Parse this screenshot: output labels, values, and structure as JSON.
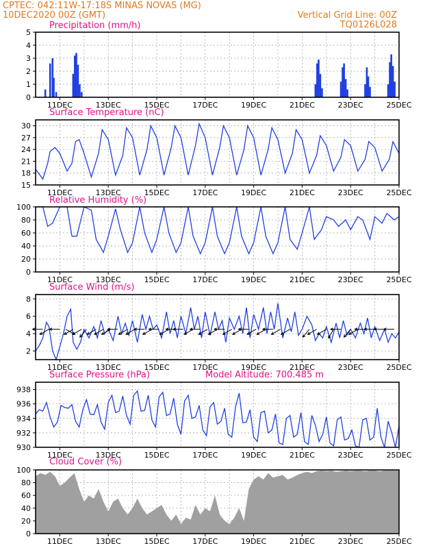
{
  "header": {
    "left_line1": "CPTEC:   042:11W-17:18S   MINAS NOVAS (MG)",
    "left_line2": "10DEC2020 00Z (GMT)",
    "right_line1": "Vertical Grid Line: 00Z",
    "right_line2": "TQ0126L028"
  },
  "colors": {
    "line": "#1f3fe0",
    "cloud": "#a0a0a0",
    "title": "#e0118a",
    "header": "#e07a1f"
  },
  "x_tick_labels": [
    "11DEC",
    "13DEC",
    "15DEC",
    "17DEC",
    "19DEC",
    "21DEC",
    "23DEC",
    "25DEC"
  ],
  "chart_data": [
    {
      "type": "bar",
      "title": "Precipitation (mm/h)",
      "ylim": [
        0,
        5
      ],
      "yticks": [
        "0",
        "1",
        "2",
        "3",
        "4",
        "5"
      ],
      "x_range_days": [
        10,
        25
      ],
      "grid": true,
      "events": [
        {
          "t": 10.4,
          "v": 0.6
        },
        {
          "t": 10.6,
          "v": 2.6
        },
        {
          "t": 10.7,
          "v": 3.0
        },
        {
          "t": 10.75,
          "v": 1.5
        },
        {
          "t": 10.85,
          "v": 0.4
        },
        {
          "t": 11.55,
          "v": 1.8
        },
        {
          "t": 11.62,
          "v": 3.2
        },
        {
          "t": 11.68,
          "v": 3.4
        },
        {
          "t": 11.75,
          "v": 2.5
        },
        {
          "t": 11.82,
          "v": 1.0
        },
        {
          "t": 11.9,
          "v": 0.4
        },
        {
          "t": 21.55,
          "v": 1.0
        },
        {
          "t": 21.62,
          "v": 2.6
        },
        {
          "t": 21.68,
          "v": 2.9
        },
        {
          "t": 21.75,
          "v": 1.8
        },
        {
          "t": 21.82,
          "v": 0.7
        },
        {
          "t": 22.6,
          "v": 1.2
        },
        {
          "t": 22.67,
          "v": 2.3
        },
        {
          "t": 22.73,
          "v": 2.6
        },
        {
          "t": 22.8,
          "v": 1.4
        },
        {
          "t": 22.87,
          "v": 0.6
        },
        {
          "t": 23.6,
          "v": 1.0
        },
        {
          "t": 23.67,
          "v": 2.3
        },
        {
          "t": 23.73,
          "v": 1.6
        },
        {
          "t": 23.8,
          "v": 0.8
        },
        {
          "t": 24.55,
          "v": 1.0
        },
        {
          "t": 24.62,
          "v": 2.7
        },
        {
          "t": 24.68,
          "v": 3.3
        },
        {
          "t": 24.75,
          "v": 2.4
        },
        {
          "t": 24.82,
          "v": 1.2
        }
      ]
    },
    {
      "type": "line",
      "title": "Surface Temperature (nC)",
      "ylim": [
        15,
        31.5
      ],
      "yticks": [
        "15",
        "18",
        "21",
        "24",
        "27",
        "30"
      ],
      "x_range_days": [
        10,
        25
      ],
      "grid": true,
      "x": [
        10.0,
        10.3,
        10.5,
        10.6,
        10.8,
        11.0,
        11.3,
        11.5,
        11.65,
        11.8,
        12.0,
        12.3,
        12.6,
        12.75,
        13.0,
        13.3,
        13.6,
        13.75,
        14.0,
        14.3,
        14.6,
        14.75,
        15.0,
        15.3,
        15.6,
        15.75,
        16.0,
        16.3,
        16.6,
        16.75,
        17.0,
        17.3,
        17.6,
        17.75,
        18.0,
        18.3,
        18.6,
        18.75,
        19.0,
        19.3,
        19.6,
        19.75,
        20.0,
        20.3,
        20.6,
        20.75,
        21.0,
        21.3,
        21.6,
        21.75,
        22.0,
        22.3,
        22.6,
        22.75,
        23.0,
        23.3,
        23.6,
        23.75,
        24.0,
        24.3,
        24.6,
        24.75,
        25.0
      ],
      "series": [
        {
          "values": [
            19.0,
            16.5,
            20.5,
            23.5,
            24.5,
            23.0,
            18.5,
            20.5,
            26.0,
            26.5,
            23.0,
            17.0,
            23.0,
            29.0,
            26.5,
            17.5,
            22.5,
            29.5,
            27.0,
            17.5,
            24.0,
            30.0,
            27.0,
            17.5,
            24.5,
            30.0,
            27.0,
            17.5,
            25.0,
            30.5,
            27.0,
            17.5,
            24.5,
            30.0,
            27.0,
            17.5,
            24.0,
            30.0,
            27.0,
            17.5,
            24.0,
            29.5,
            26.5,
            18.0,
            23.0,
            29.0,
            26.5,
            18.0,
            22.5,
            27.5,
            25.0,
            18.5,
            22.0,
            26.5,
            25.0,
            18.5,
            21.5,
            26.0,
            24.5,
            18.5,
            21.5,
            26.0,
            23.0
          ]
        }
      ]
    },
    {
      "type": "line",
      "title": "Relative Humidity (%)",
      "ylim": [
        0,
        100
      ],
      "yticks": [
        "0",
        "20",
        "40",
        "60",
        "80",
        "100"
      ],
      "x_range_days": [
        10,
        25
      ],
      "grid": true,
      "x": [
        10.0,
        10.3,
        10.5,
        10.7,
        11.0,
        11.3,
        11.5,
        11.7,
        12.0,
        12.3,
        12.5,
        12.8,
        13.0,
        13.3,
        13.5,
        13.8,
        14.0,
        14.3,
        14.5,
        14.8,
        15.0,
        15.3,
        15.5,
        15.8,
        16.0,
        16.3,
        16.5,
        16.8,
        17.0,
        17.3,
        17.5,
        17.8,
        18.0,
        18.3,
        18.5,
        18.8,
        19.0,
        19.3,
        19.5,
        19.8,
        20.0,
        20.3,
        20.5,
        20.8,
        21.0,
        21.3,
        21.5,
        21.8,
        22.0,
        22.3,
        22.5,
        22.8,
        23.0,
        23.3,
        23.5,
        23.8,
        24.0,
        24.3,
        24.5,
        24.8,
        25.0
      ],
      "series": [
        {
          "values": [
            100,
            100,
            70,
            75,
            100,
            100,
            55,
            55,
            100,
            95,
            50,
            30,
            55,
            97,
            65,
            30,
            45,
            100,
            60,
            30,
            50,
            100,
            60,
            30,
            45,
            100,
            55,
            28,
            45,
            100,
            55,
            28,
            45,
            100,
            55,
            28,
            45,
            100,
            55,
            28,
            45,
            100,
            50,
            35,
            60,
            100,
            50,
            65,
            85,
            80,
            70,
            80,
            65,
            85,
            80,
            50,
            85,
            75,
            90,
            80,
            85
          ]
        }
      ]
    },
    {
      "type": "line",
      "title": "Surface Wind (m/s)",
      "ylim": [
        1,
        8.5
      ],
      "yticks": [
        "2",
        "4",
        "6",
        "8"
      ],
      "x_range_days": [
        10,
        25
      ],
      "grid": true,
      "x": [
        10.0,
        10.15,
        10.3,
        10.45,
        10.55,
        10.7,
        10.85,
        11.0,
        11.15,
        11.3,
        11.45,
        11.55,
        11.7,
        11.85,
        12.0,
        12.2,
        12.4,
        12.55,
        12.7,
        12.85,
        13.0,
        13.2,
        13.4,
        13.55,
        13.7,
        13.85,
        14.0,
        14.2,
        14.4,
        14.55,
        14.7,
        14.85,
        15.0,
        15.2,
        15.4,
        15.55,
        15.7,
        15.85,
        16.0,
        16.2,
        16.4,
        16.55,
        16.7,
        16.85,
        17.0,
        17.2,
        17.4,
        17.55,
        17.7,
        17.85,
        18.0,
        18.2,
        18.4,
        18.55,
        18.7,
        18.85,
        19.0,
        19.2,
        19.4,
        19.55,
        19.7,
        19.85,
        20.0,
        20.2,
        20.4,
        20.55,
        20.7,
        20.85,
        21.0,
        21.2,
        21.4,
        21.55,
        21.7,
        21.85,
        22.0,
        22.2,
        22.4,
        22.55,
        22.7,
        22.85,
        23.0,
        23.2,
        23.4,
        23.55,
        23.7,
        23.85,
        24.0,
        24.2,
        24.4,
        24.55,
        24.7,
        24.85,
        25.0
      ],
      "series": [
        {
          "values": [
            2.0,
            2.6,
            3.5,
            5.3,
            4.8,
            2.0,
            1.0,
            2.5,
            4.0,
            6.0,
            6.8,
            3.0,
            2.2,
            3.0,
            4.5,
            3.5,
            4.8,
            3.5,
            5.5,
            4.0,
            4.5,
            3.2,
            6.0,
            4.0,
            5.2,
            3.8,
            5.5,
            3.0,
            6.2,
            4.5,
            6.0,
            4.5,
            5.0,
            3.5,
            6.5,
            4.0,
            5.5,
            3.5,
            6.0,
            4.0,
            7.0,
            4.5,
            6.0,
            3.5,
            6.5,
            3.8,
            6.5,
            4.5,
            5.5,
            3.0,
            5.8,
            4.5,
            6.0,
            4.0,
            7.0,
            3.5,
            6.2,
            4.5,
            7.0,
            4.0,
            6.5,
            4.5,
            7.5,
            3.5,
            5.8,
            4.2,
            6.5,
            3.8,
            4.5,
            6.0,
            5.0,
            3.2,
            4.0,
            3.5,
            4.8,
            3.0,
            5.2,
            3.5,
            5.5,
            3.8,
            4.5,
            3.5,
            5.2,
            4.0,
            5.8,
            3.5,
            4.8,
            3.2,
            4.5,
            3.0,
            4.0,
            3.5,
            4.2
          ]
        }
      ],
      "wind_barbs": [
        {
          "t": 10.3,
          "deg": 90
        },
        {
          "t": 10.55,
          "deg": 60
        },
        {
          "t": 11.0,
          "deg": 90
        },
        {
          "t": 11.25,
          "deg": 300
        },
        {
          "t": 11.55,
          "deg": 60
        },
        {
          "t": 11.9,
          "deg": 60
        },
        {
          "t": 12.1,
          "deg": 40
        },
        {
          "t": 12.5,
          "deg": 60
        },
        {
          "t": 12.8,
          "deg": 60
        },
        {
          "t": 13.1,
          "deg": 60
        },
        {
          "t": 13.4,
          "deg": 90
        },
        {
          "t": 13.8,
          "deg": 60
        },
        {
          "t": 14.1,
          "deg": 60
        },
        {
          "t": 14.5,
          "deg": 90
        },
        {
          "t": 14.8,
          "deg": 60
        },
        {
          "t": 15.1,
          "deg": 90
        },
        {
          "t": 15.5,
          "deg": 60
        },
        {
          "t": 15.8,
          "deg": 90
        },
        {
          "t": 16.1,
          "deg": 90
        },
        {
          "t": 16.5,
          "deg": 60
        },
        {
          "t": 16.8,
          "deg": 90
        },
        {
          "t": 17.1,
          "deg": 60
        },
        {
          "t": 17.5,
          "deg": 60
        },
        {
          "t": 17.8,
          "deg": 90
        },
        {
          "t": 18.1,
          "deg": 60
        },
        {
          "t": 18.5,
          "deg": 60
        },
        {
          "t": 18.8,
          "deg": 90
        },
        {
          "t": 19.1,
          "deg": 60
        },
        {
          "t": 19.5,
          "deg": 60
        },
        {
          "t": 19.8,
          "deg": 90
        },
        {
          "t": 20.1,
          "deg": 60
        },
        {
          "t": 20.5,
          "deg": 60
        },
        {
          "t": 21.3,
          "deg": 40
        },
        {
          "t": 21.6,
          "deg": 60
        },
        {
          "t": 22.0,
          "deg": 60
        },
        {
          "t": 22.3,
          "deg": 30
        },
        {
          "t": 22.6,
          "deg": 90
        },
        {
          "t": 23.0,
          "deg": 40
        },
        {
          "t": 23.3,
          "deg": 60
        },
        {
          "t": 23.6,
          "deg": 90
        },
        {
          "t": 24.0,
          "deg": 90
        },
        {
          "t": 24.4,
          "deg": 90
        },
        {
          "t": 24.8,
          "deg": 90
        }
      ]
    },
    {
      "type": "line",
      "title": "Surface Pressure (hPa)",
      "annotation": "Model Altitude: 700.485 m",
      "ylim": [
        930,
        939
      ],
      "yticks": [
        "930",
        "932",
        "934",
        "936",
        "938"
      ],
      "x_range_days": [
        10,
        25
      ],
      "grid": true,
      "x": [
        10.0,
        10.15,
        10.3,
        10.45,
        10.6,
        10.75,
        10.9,
        11.05,
        11.2,
        11.35,
        11.5,
        11.65,
        11.8,
        11.95,
        12.1,
        12.25,
        12.4,
        12.55,
        12.7,
        12.85,
        13.0,
        13.15,
        13.3,
        13.45,
        13.6,
        13.75,
        13.9,
        14.05,
        14.2,
        14.35,
        14.5,
        14.65,
        14.8,
        14.95,
        15.1,
        15.25,
        15.4,
        15.55,
        15.7,
        15.85,
        16.0,
        16.15,
        16.3,
        16.45,
        16.6,
        16.75,
        16.9,
        17.05,
        17.2,
        17.35,
        17.5,
        17.65,
        17.8,
        17.95,
        18.1,
        18.25,
        18.4,
        18.55,
        18.7,
        18.85,
        19.0,
        19.15,
        19.3,
        19.45,
        19.6,
        19.75,
        19.9,
        20.05,
        20.2,
        20.35,
        20.5,
        20.65,
        20.8,
        20.95,
        21.1,
        21.25,
        21.4,
        21.55,
        21.7,
        21.85,
        22.0,
        22.15,
        22.3,
        22.45,
        22.6,
        22.75,
        22.9,
        23.05,
        23.2,
        23.35,
        23.5,
        23.65,
        23.8,
        23.95,
        24.1,
        24.25,
        24.4,
        24.55,
        24.7,
        24.85,
        25.0
      ],
      "series": [
        {
          "values": [
            934.6,
            935.2,
            935.0,
            936.2,
            934.2,
            932.8,
            933.5,
            935.8,
            935.5,
            935.4,
            935.9,
            933.6,
            932.8,
            935.2,
            936.6,
            934.6,
            934.5,
            935.9,
            933.5,
            932.5,
            936.2,
            937.2,
            934.8,
            935.0,
            937.1,
            934.4,
            933.2,
            937.2,
            937.8,
            935.0,
            935.1,
            937.2,
            933.8,
            932.8,
            937.0,
            937.6,
            934.4,
            934.6,
            936.8,
            933.2,
            931.8,
            936.4,
            937.2,
            934.0,
            934.2,
            935.8,
            932.4,
            931.6,
            935.6,
            936.2,
            933.2,
            933.6,
            935.4,
            931.8,
            931.4,
            935.6,
            937.5,
            933.4,
            933.5,
            935.2,
            931.4,
            930.8,
            934.8,
            935.0,
            932.0,
            932.4,
            934.6,
            930.6,
            930.4,
            934.0,
            934.4,
            931.4,
            931.8,
            934.8,
            930.8,
            930.4,
            934.4,
            933.0,
            930.8,
            931.8,
            934.2,
            930.6,
            930.2,
            933.8,
            934.2,
            931.0,
            931.2,
            932.4,
            930.2,
            930.0,
            933.8,
            934.0,
            931.0,
            931.4,
            935.4,
            931.4,
            930.0,
            933.6,
            932.0,
            930.0,
            933.0
          ]
        }
      ]
    },
    {
      "type": "area",
      "title": "Cloud Cover (%)",
      "ylim": [
        0,
        100
      ],
      "yticks": [
        "0",
        "20",
        "40",
        "60",
        "80",
        "100"
      ],
      "x_range_days": [
        10,
        25
      ],
      "grid": true,
      "x": [
        10.0,
        10.2,
        10.4,
        10.6,
        10.8,
        11.0,
        11.2,
        11.4,
        11.6,
        11.8,
        12.0,
        12.2,
        12.4,
        12.6,
        12.8,
        13.0,
        13.2,
        13.4,
        13.6,
        13.8,
        14.0,
        14.2,
        14.4,
        14.6,
        14.8,
        15.0,
        15.2,
        15.4,
        15.6,
        15.8,
        16.0,
        16.2,
        16.4,
        16.6,
        16.8,
        17.0,
        17.2,
        17.4,
        17.6,
        17.8,
        18.0,
        18.2,
        18.4,
        18.6,
        18.8,
        19.0,
        19.2,
        19.4,
        19.6,
        19.8,
        20.0,
        20.2,
        20.4,
        20.6,
        20.8,
        21.0,
        21.2,
        21.4,
        21.6,
        21.8,
        22.0,
        22.2,
        22.4,
        22.6,
        22.8,
        23.0,
        23.2,
        23.4,
        23.6,
        23.8,
        24.0,
        24.2,
        24.4,
        24.6,
        24.8,
        25.0
      ],
      "series": [
        {
          "values": [
            90,
            95,
            92,
            97,
            90,
            75,
            80,
            88,
            95,
            70,
            50,
            60,
            55,
            70,
            50,
            35,
            50,
            55,
            40,
            30,
            40,
            55,
            40,
            30,
            35,
            40,
            45,
            30,
            20,
            30,
            15,
            25,
            22,
            45,
            30,
            40,
            35,
            60,
            30,
            20,
            15,
            25,
            40,
            20,
            70,
            85,
            90,
            85,
            95,
            88,
            90,
            92,
            85,
            88,
            92,
            95,
            97,
            95,
            98,
            99,
            98,
            99,
            97,
            98,
            99,
            98,
            99,
            99,
            98,
            99,
            99,
            98,
            99,
            99,
            99,
            99
          ]
        }
      ]
    }
  ]
}
